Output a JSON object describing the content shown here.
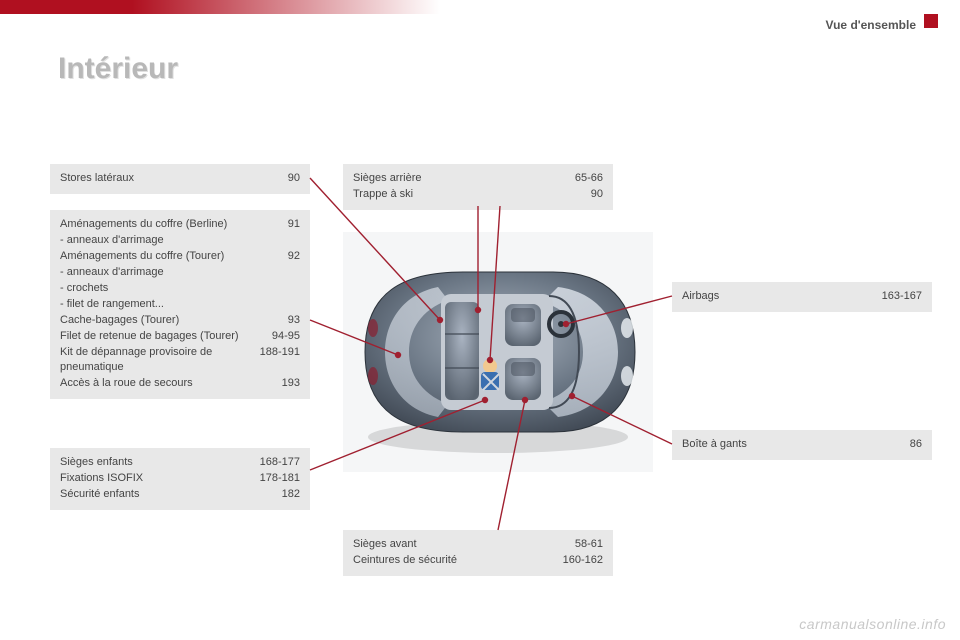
{
  "header": {
    "section": "Vue d'ensemble"
  },
  "title": "Intérieur",
  "boxes": {
    "stores": {
      "rows": [
        {
          "label": "Stores latéraux",
          "pg": "90"
        }
      ]
    },
    "coffre": {
      "rows": [
        {
          "label": "Aménagements du coffre (Berline)",
          "pg": "91"
        },
        {
          "label": "anneaux d'arrimage",
          "sub": true
        },
        {
          "label": "Aménagements du coffre (Tourer)",
          "pg": "92"
        },
        {
          "label": "anneaux d'arrimage",
          "sub": true
        },
        {
          "label": "crochets",
          "sub": true
        },
        {
          "label": "filet de rangement...",
          "sub": true
        },
        {
          "label": "Cache-bagages (Tourer)",
          "pg": "93"
        },
        {
          "label": "Filet de retenue de bagages (Tourer)",
          "pg": "94-95"
        },
        {
          "label": "Kit de dépannage provisoire de pneumatique",
          "pg": "188-191"
        },
        {
          "label": "Accès à la roue de secours",
          "pg": "193"
        }
      ]
    },
    "enfants": {
      "rows": [
        {
          "label": "Sièges enfants",
          "pg": "168-177"
        },
        {
          "label": "Fixations ISOFIX",
          "pg": "178-181"
        },
        {
          "label": "Sécurité enfants",
          "pg": "182"
        }
      ]
    },
    "arriere": {
      "rows": [
        {
          "label": "Sièges arrière",
          "pg": "65-66"
        },
        {
          "label": "Trappe à ski",
          "pg": "90"
        }
      ]
    },
    "avant": {
      "rows": [
        {
          "label": "Sièges avant",
          "pg": "58-61"
        },
        {
          "label": "Ceintures de sécurité",
          "pg": "160-162"
        }
      ]
    },
    "airbags": {
      "rows": [
        {
          "label": "Airbags",
          "pg": "163-167"
        }
      ]
    },
    "gants": {
      "rows": [
        {
          "label": "Boîte à gants",
          "pg": "86"
        }
      ]
    }
  },
  "watermark": "carmanualsonline.info",
  "colors": {
    "accent": "#b01020",
    "box_bg": "#e8e8e8",
    "text": "#444444",
    "car_body": "#6a7684",
    "car_body_light": "#9aa6b4",
    "car_body_dark": "#3a424d",
    "car_interior": "#c5cbd3",
    "seat": "#8b96a4",
    "seat_dark": "#5a6470",
    "line": "#a02030"
  },
  "fontsizes": {
    "title": 30,
    "header": 12,
    "body": 11,
    "watermark": 14
  }
}
